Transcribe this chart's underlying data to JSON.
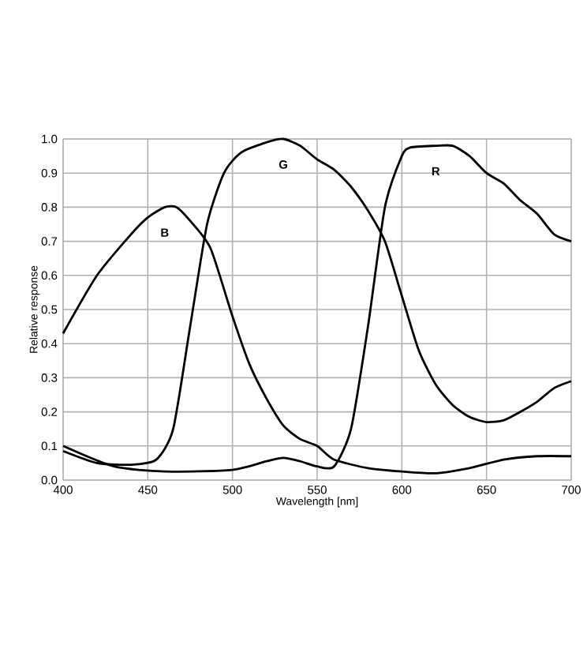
{
  "chart_data": {
    "type": "line",
    "xlabel": "Wavelength [nm]",
    "ylabel": "Relative response",
    "xlim": [
      400,
      700
    ],
    "ylim": [
      0,
      1.0
    ],
    "xticks": [
      400,
      450,
      500,
      550,
      600,
      650,
      700
    ],
    "yticks": [
      {
        "value": 0,
        "label": "0.0"
      },
      {
        "value": 0.1,
        "label": "0.1"
      },
      {
        "value": 0.2,
        "label": "0.2"
      },
      {
        "value": 0.3,
        "label": "0.3"
      },
      {
        "value": 0.4,
        "label": "0.4"
      },
      {
        "value": 0.5,
        "label": "0.5"
      },
      {
        "value": 0.6,
        "label": "0.6"
      },
      {
        "value": 0.7,
        "label": "0.7"
      },
      {
        "value": 0.8,
        "label": "0.8"
      },
      {
        "value": 0.9,
        "label": "0.9"
      },
      {
        "value": 1.0,
        "label": "1.0"
      }
    ],
    "grid": true,
    "marker": "none",
    "line_style": "solid",
    "series": [
      {
        "name": "B",
        "color": "#000000",
        "x": [
          400,
          420,
          440,
          450,
          460,
          467,
          475,
          487,
          500,
          510,
          520,
          530,
          540,
          550,
          560,
          580,
          600,
          620,
          640,
          660,
          680,
          700
        ],
        "values": [
          0.43,
          0.6,
          0.72,
          0.77,
          0.8,
          0.8,
          0.76,
          0.68,
          0.48,
          0.34,
          0.24,
          0.16,
          0.12,
          0.1,
          0.06,
          0.035,
          0.025,
          0.02,
          0.035,
          0.06,
          0.07,
          0.07
        ]
      },
      {
        "name": "G",
        "color": "#000000",
        "x": [
          400,
          420,
          440,
          455,
          465,
          475,
          485,
          495,
          505,
          520,
          530,
          540,
          550,
          560,
          570,
          580,
          590,
          600,
          610,
          620,
          630,
          640,
          650,
          660,
          670,
          680,
          690,
          700
        ],
        "values": [
          0.085,
          0.05,
          0.045,
          0.06,
          0.15,
          0.45,
          0.75,
          0.9,
          0.96,
          0.99,
          1.0,
          0.98,
          0.94,
          0.91,
          0.86,
          0.79,
          0.7,
          0.54,
          0.38,
          0.28,
          0.22,
          0.185,
          0.17,
          0.175,
          0.2,
          0.23,
          0.27,
          0.29
        ]
      },
      {
        "name": "R",
        "color": "#000000",
        "x": [
          400,
          430,
          460,
          500,
          520,
          530,
          540,
          550,
          560,
          570,
          580,
          590,
          600,
          605,
          620,
          630,
          640,
          650,
          660,
          670,
          680,
          690,
          700
        ],
        "values": [
          0.1,
          0.04,
          0.025,
          0.03,
          0.055,
          0.065,
          0.055,
          0.04,
          0.04,
          0.15,
          0.45,
          0.8,
          0.95,
          0.975,
          0.98,
          0.98,
          0.95,
          0.9,
          0.87,
          0.82,
          0.78,
          0.72,
          0.7
        ]
      }
    ]
  }
}
